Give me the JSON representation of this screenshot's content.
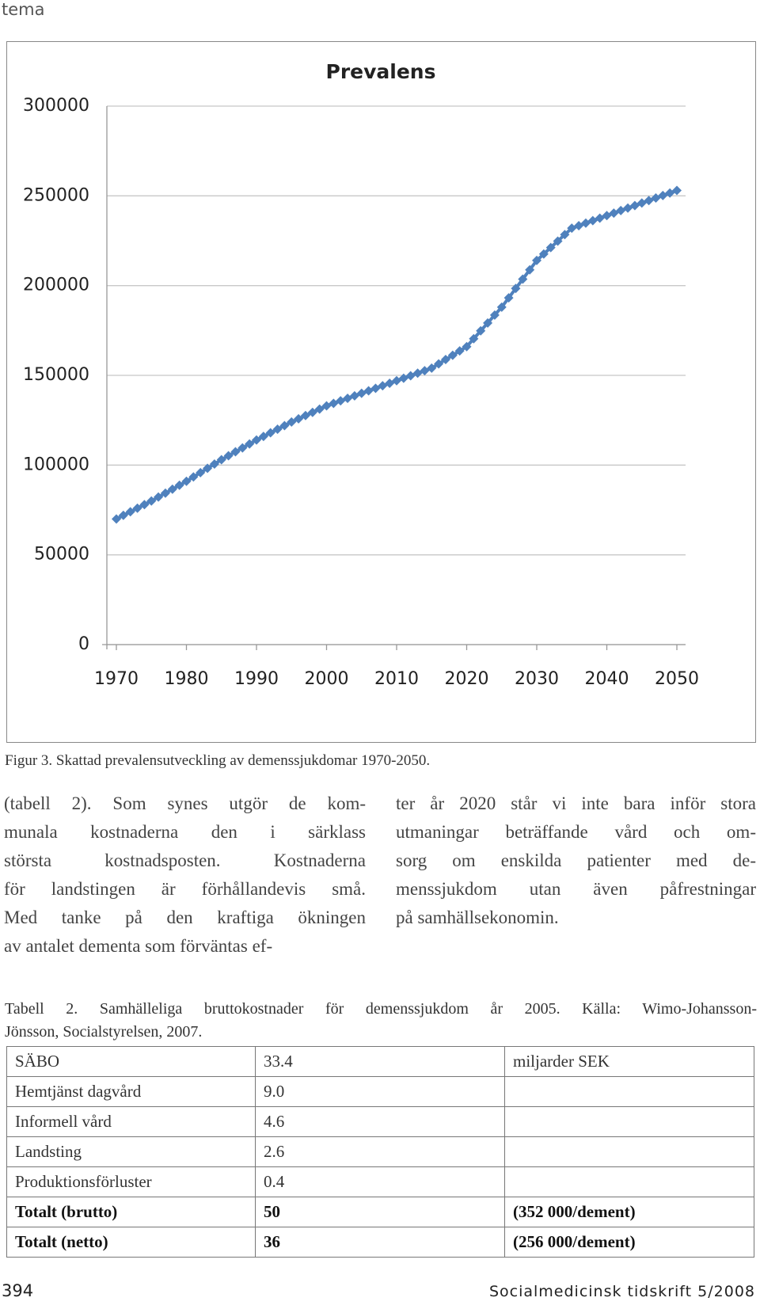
{
  "header": "tema",
  "chart_data": {
    "type": "line",
    "title": "Prevalens",
    "x": [
      1970,
      1971,
      1972,
      1973,
      1974,
      1975,
      1976,
      1977,
      1978,
      1979,
      1980,
      1981,
      1982,
      1983,
      1984,
      1985,
      1986,
      1987,
      1988,
      1989,
      1990,
      1991,
      1992,
      1993,
      1994,
      1995,
      1996,
      1997,
      1998,
      1999,
      2000,
      2001,
      2002,
      2003,
      2004,
      2005,
      2006,
      2007,
      2008,
      2009,
      2010,
      2011,
      2012,
      2013,
      2014,
      2015,
      2016,
      2017,
      2018,
      2019,
      2020,
      2021,
      2022,
      2023,
      2024,
      2025,
      2026,
      2027,
      2028,
      2029,
      2030,
      2031,
      2032,
      2033,
      2034,
      2035,
      2036,
      2037,
      2038,
      2039,
      2040,
      2041,
      2042,
      2043,
      2044,
      2045,
      2046,
      2047,
      2048,
      2049,
      2050
    ],
    "values": [
      70000,
      72000,
      74000,
      76000,
      78000,
      80000,
      82200,
      84400,
      86600,
      88800,
      91000,
      93400,
      95800,
      98200,
      100600,
      103000,
      105200,
      107400,
      109600,
      111800,
      114000,
      116000,
      118000,
      120000,
      122000,
      124000,
      125800,
      127600,
      129400,
      131200,
      133000,
      134400,
      135800,
      137200,
      138600,
      140000,
      141400,
      142800,
      144200,
      145600,
      147000,
      148400,
      149800,
      151200,
      152600,
      154000,
      156400,
      158800,
      161200,
      163600,
      166000,
      170400,
      174800,
      179200,
      183600,
      188000,
      193200,
      198400,
      203600,
      208800,
      214000,
      217600,
      221200,
      224800,
      228400,
      232000,
      233400,
      234800,
      236200,
      237600,
      239000,
      240400,
      241800,
      243200,
      244600,
      246000,
      247400,
      248800,
      250200,
      251600,
      253000
    ],
    "color": "#4f81bd",
    "xlim": [
      1970,
      2050
    ],
    "xticks": [
      1970,
      1980,
      1990,
      2000,
      2010,
      2020,
      2030,
      2040,
      2050
    ],
    "ylim": [
      0,
      300000
    ],
    "yticks": [
      0,
      50000,
      100000,
      150000,
      200000,
      250000,
      300000
    ],
    "grid": true
  },
  "caption": "Figur 3. Skattad  prevalensutveckling av demenssjukdomar 1970-2050.",
  "columns": {
    "left": [
      "(tabell 2). Som synes utgör de kom-",
      "munala kostnaderna den i särklass",
      "största kostnadsposten. Kostnaderna",
      "för landstingen är förhållandevis små.",
      "Med tanke på den kraftiga ökningen",
      "av antalet dementa som förväntas ef-"
    ],
    "right": [
      "ter år 2020 står vi inte bara inför stora",
      "utmaningar beträffande vård och om-",
      "sorg om enskilda patienter med de-",
      "menssjukdom utan även påfrestningar",
      "på samhällsekonomin."
    ]
  },
  "table": {
    "caption": [
      "Tabell 2. Samhälleliga bruttokostnader för demenssjukdom år 2005. Källa: Wimo-Johansson-",
      "Jönsson, Socialstyrelsen, 2007."
    ],
    "rows": [
      [
        "SÄBO",
        "33.4",
        "miljarder SEK"
      ],
      [
        "Hemtjänst dagvård",
        "9.0"
      ],
      [
        "Informell vård",
        "4.6"
      ],
      [
        "Landsting",
        "2.6"
      ],
      [
        "Produktionsförluster",
        "0.4"
      ],
      [
        "Totalt (brutto)",
        "50",
        "(352 000/dement)"
      ],
      [
        "Totalt (netto)",
        "36",
        "(256 000/dement)"
      ]
    ]
  },
  "footer": {
    "page": "394",
    "journal": "Socialmedicinsk tidskrift 5/2008"
  }
}
